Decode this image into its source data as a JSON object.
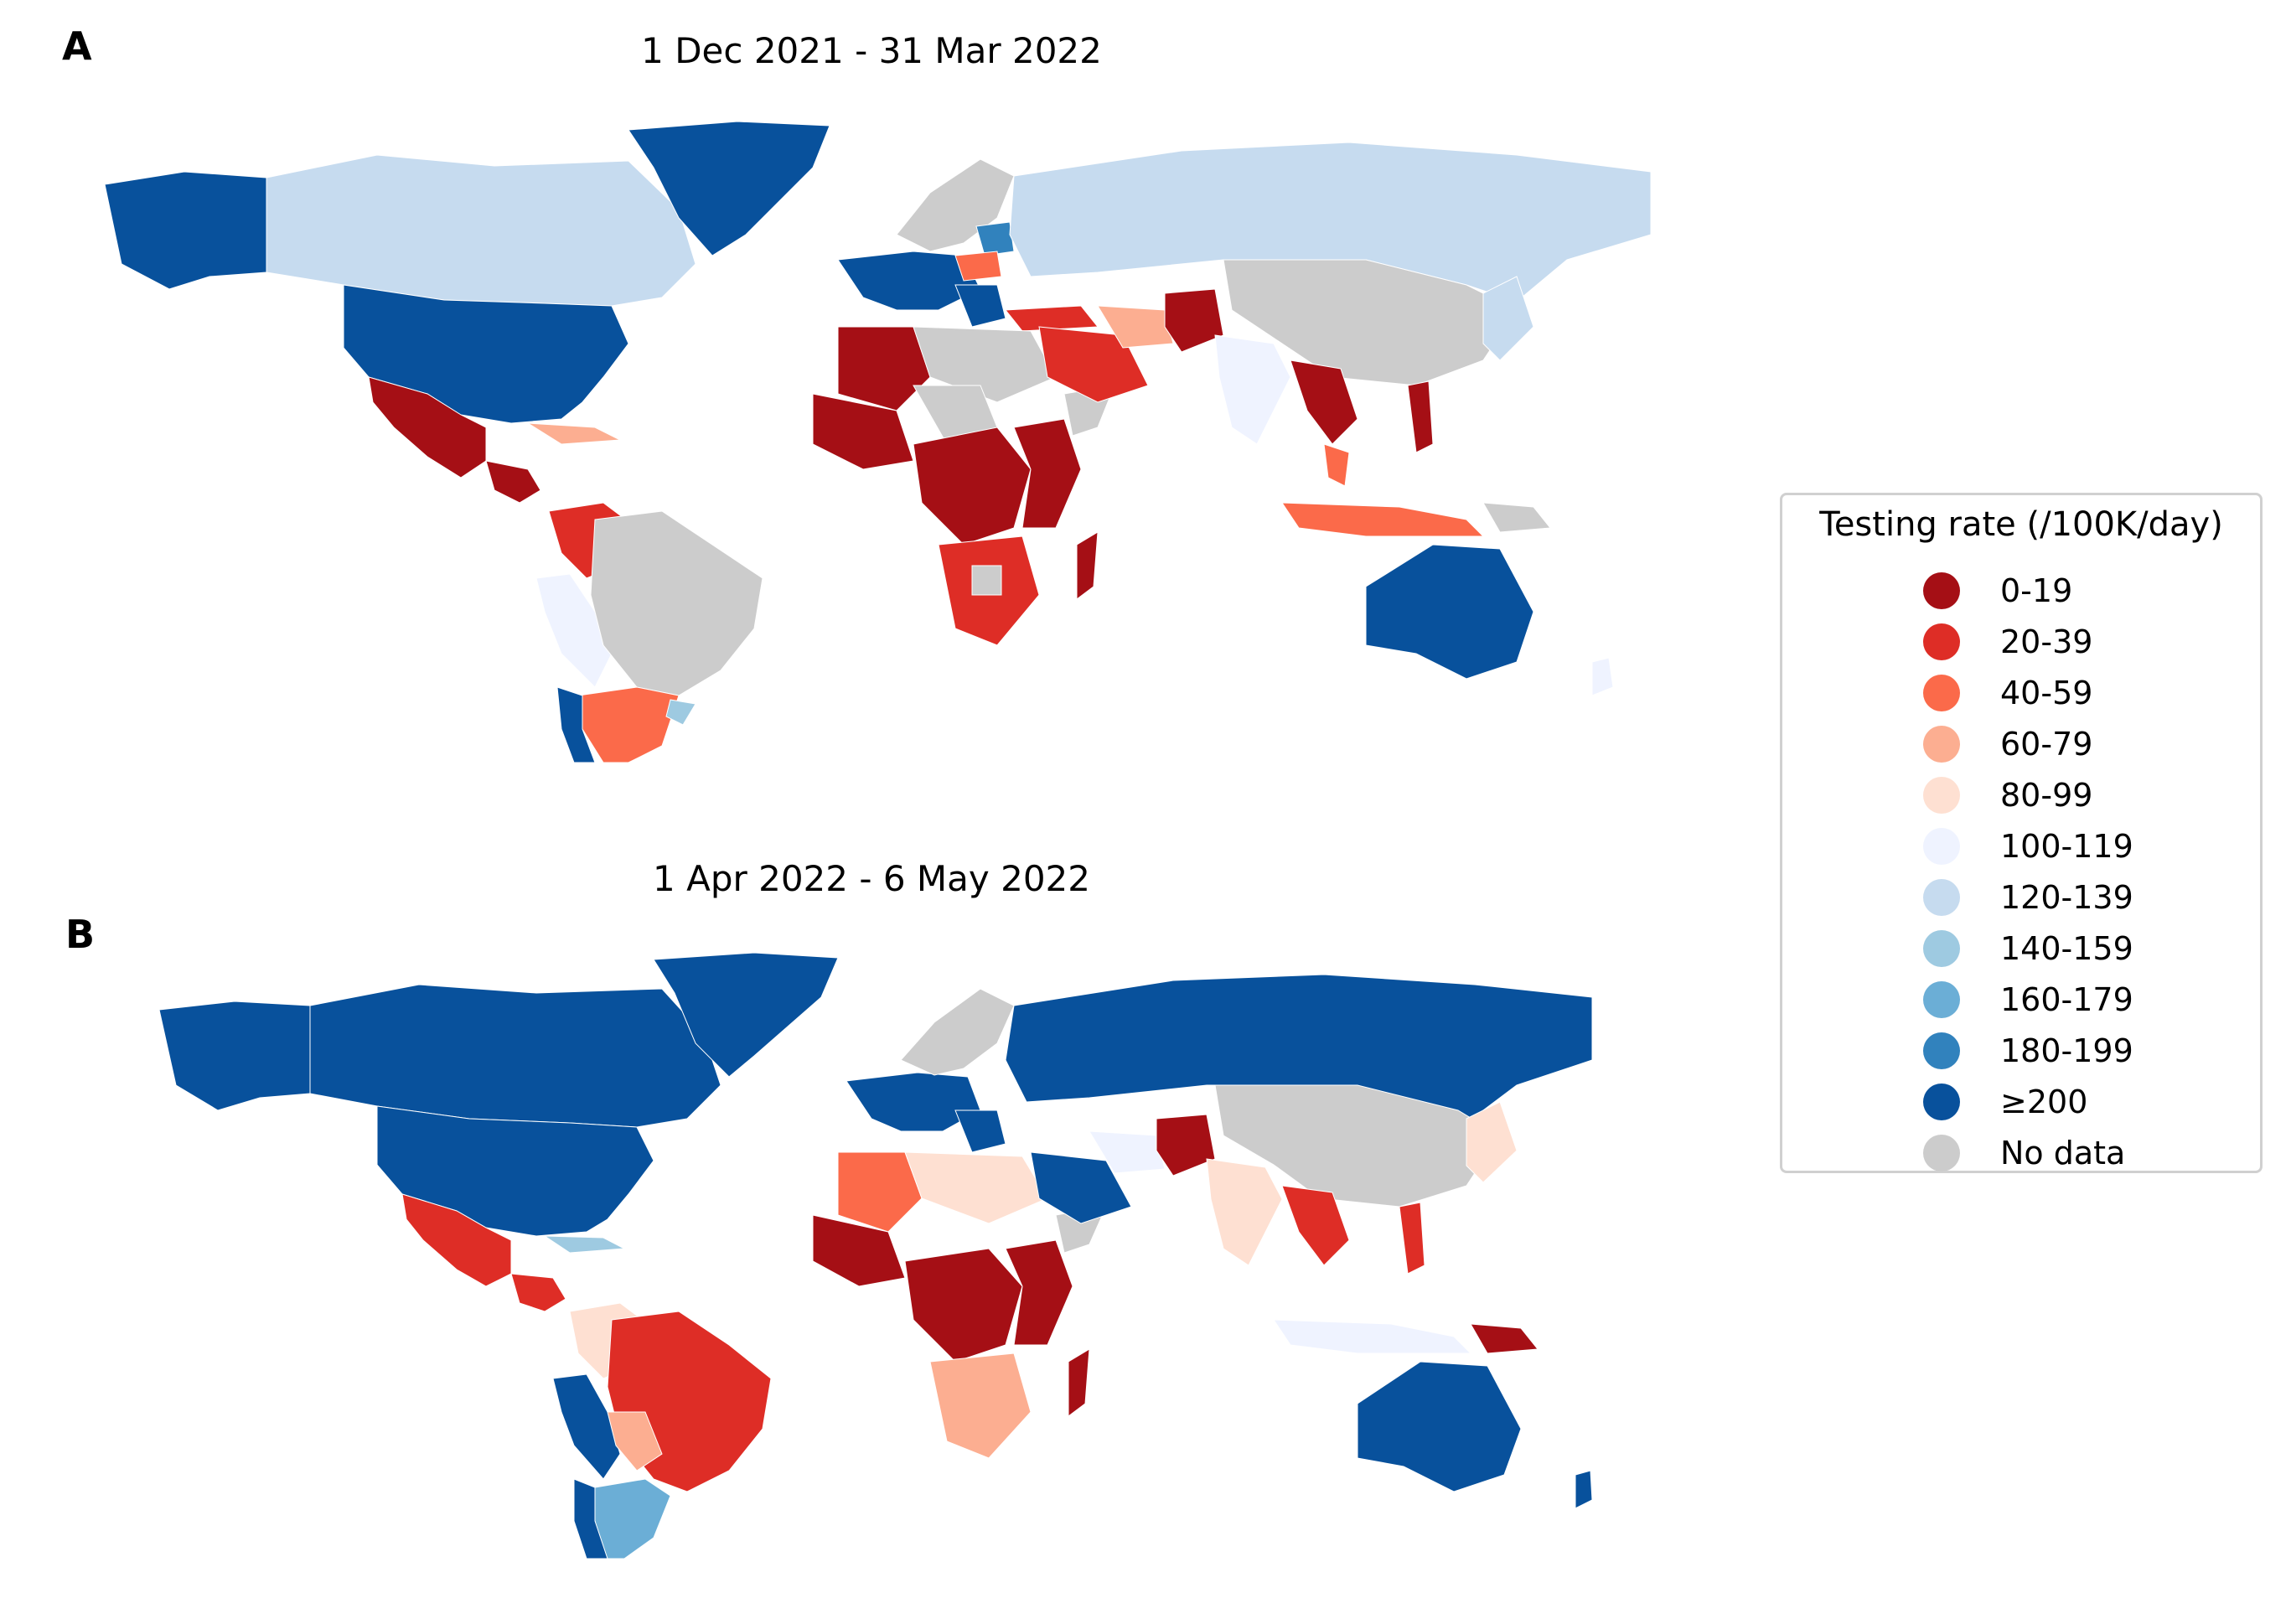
{
  "panels": [
    {
      "letter": "A",
      "title": "1 Dec 2021 - 31 Mar 2022"
    },
    {
      "letter": "B",
      "title": "1 Apr 2022 - 6 May 2022"
    }
  ],
  "legend": {
    "title": "Testing rate (/100K/day)",
    "bins": [
      {
        "label": "0-19",
        "color": "#a50f15"
      },
      {
        "label": "20-39",
        "color": "#de2d26"
      },
      {
        "label": "40-59",
        "color": "#fb6a4a"
      },
      {
        "label": "60-79",
        "color": "#fcae91"
      },
      {
        "label": "80-99",
        "color": "#fee0d2"
      },
      {
        "label": "100-119",
        "color": "#eff3ff"
      },
      {
        "label": "120-139",
        "color": "#c6dbef"
      },
      {
        "label": "140-159",
        "color": "#9ecae1"
      },
      {
        "label": "160-179",
        "color": "#6baed6"
      },
      {
        "label": "180-199",
        "color": "#3182bd"
      },
      {
        "label": "≥200",
        "color": "#08519c"
      },
      {
        "label": "No data",
        "color": "#cccccc"
      }
    ]
  },
  "maps": [
    {
      "regions": {
        "alaska": "≥200",
        "canada": "120-139",
        "greenland": "≥200",
        "usa": "≥200",
        "mexico": "0-19",
        "central_america": "0-19",
        "caribbean": "60-79",
        "colombia_venezuela": "20-39",
        "ecuador_peru": "100-119",
        "brazil": "No data",
        "argentina": "40-59",
        "chile": "≥200",
        "uruguay": "140-159",
        "western_europe": "≥200",
        "scandinavia": "No data",
        "baltics": "180-199",
        "poland": "40-59",
        "balkans": "≥200",
        "turkey": "20-39",
        "russia": "120-139",
        "north_africa_west": "0-19",
        "libya_egypt": "No data",
        "west_africa": "0-19",
        "sahel": "No data",
        "central_africa": "0-19",
        "east_africa": "0-19",
        "horn_of_africa": "No data",
        "southern_africa": "20-39",
        "botswana": "No data",
        "madagascar": "0-19",
        "middle_east": "20-39",
        "iran": "60-79",
        "afghanistan_pakistan": "0-19",
        "india": "100-119",
        "china_mongolia": "No data",
        "mainland_southeast_asia": "0-19",
        "malay_peninsula": "40-59",
        "indonesia": "40-59",
        "philippines": "0-19",
        "japan": "120-139",
        "australia": "≥200",
        "new_zealand": "100-119",
        "new_guinea": "No data"
      }
    },
    {
      "regions": {
        "alaska": "≥200",
        "canada": "≥200",
        "greenland": "≥200",
        "usa": "≥200",
        "mexico": "20-39",
        "central_america": "20-39",
        "caribbean": "140-159",
        "colombia_venezuela": "80-99",
        "ecuador_peru": "≥200",
        "brazil": "20-39",
        "bolivia_paraguay": "60-79",
        "argentina": "160-179",
        "chile": "≥200",
        "western_europe": "≥200",
        "scandinavia": "No data",
        "russia": "≥200",
        "balkans": "≥200",
        "north_africa_west": "40-59",
        "libya_egypt": "80-99",
        "west_africa": "0-19",
        "central_africa": "0-19",
        "east_africa": "0-19",
        "horn_of_africa": "No data",
        "southern_africa": "60-79",
        "madagascar": "0-19",
        "saudi_arabia": "≥200",
        "iran": "100-119",
        "afghanistan_pakistan": "0-19",
        "india": "80-99",
        "china_mongolia": "No data",
        "mainland_southeast_asia": "20-39",
        "philippines": "20-39",
        "indonesia": "100-119",
        "japan": "80-99",
        "new_guinea": "0-19",
        "australia": "≥200",
        "new_zealand": "≥200"
      }
    }
  ]
}
